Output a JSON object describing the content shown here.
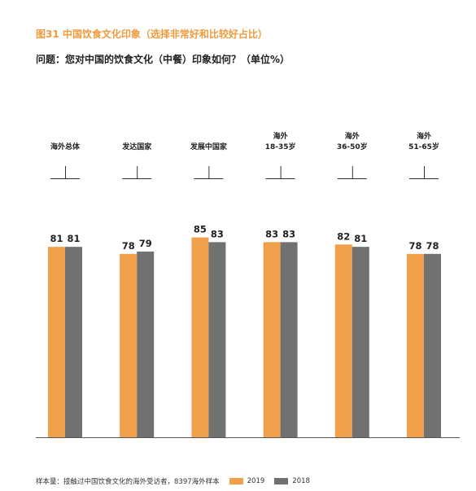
{
  "header": {
    "figure_title": "图31  中国饮食文化印象（选择非常好和比较好占比）",
    "question": "问题：您对中国的饮食文化（中餐）印象如何？（单位%）"
  },
  "footer": {
    "sample_note": "样本量：接触过中国饮食文化的海外受访者，8397海外样本"
  },
  "colors": {
    "series_2019": "#f0a04b",
    "series_2018": "#717171",
    "title_accent": "#ef9a3c"
  },
  "chart_data": {
    "type": "bar",
    "title": "图31  中国饮食文化印象（选择非常好和比较好占比）",
    "subtitle": "问题：您对中国的饮食文化（中餐）印象如何？（单位%）",
    "xlabel": "",
    "ylabel": "",
    "ylim": [
      0,
      100
    ],
    "grid": false,
    "legend": "bottom",
    "categories": [
      [
        "海外总体"
      ],
      [
        "发达国家"
      ],
      [
        "发展中国家"
      ],
      [
        "海外",
        "18-35岁"
      ],
      [
        "海外",
        "36-50岁"
      ],
      [
        "海外",
        "51-65岁"
      ]
    ],
    "series": [
      {
        "name": "2019",
        "values": [
          81,
          78,
          85,
          83,
          82,
          78
        ]
      },
      {
        "name": "2018",
        "values": [
          81,
          79,
          83,
          83,
          81,
          78
        ]
      }
    ]
  }
}
